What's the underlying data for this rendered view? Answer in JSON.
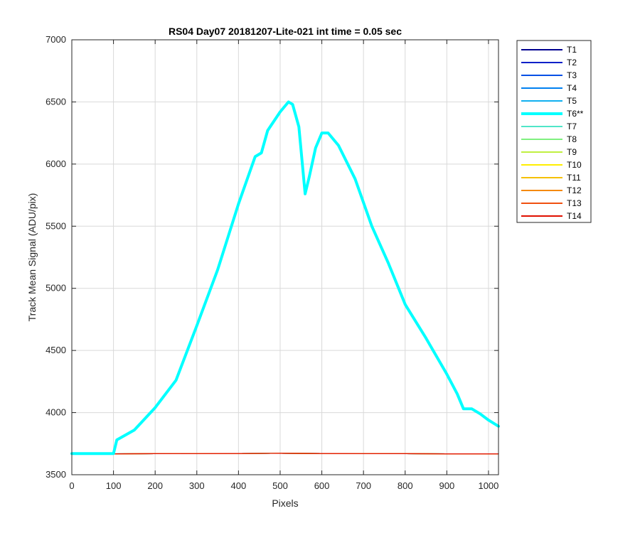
{
  "chart_data": {
    "type": "line",
    "title": "RS04 Day07 20181207-Lite-021 int time = 0.05 sec",
    "xlabel": "Pixels",
    "ylabel": "Track Mean Signal (ADU/pix)",
    "xlim": [
      0,
      1024
    ],
    "ylim": [
      3500,
      7000
    ],
    "xticks": [
      0,
      100,
      200,
      300,
      400,
      500,
      600,
      700,
      800,
      900,
      1000
    ],
    "yticks": [
      3500,
      4000,
      4500,
      5000,
      5500,
      6000,
      6500,
      7000
    ],
    "grid": true,
    "legend_position": "outside-top-right",
    "highlighted_series": "T6**",
    "baseline_series": {
      "names": [
        "T1",
        "T2",
        "T3",
        "T4",
        "T5",
        "T7",
        "T8",
        "T9",
        "T10",
        "T11",
        "T12",
        "T13",
        "T14"
      ],
      "x": [
        0,
        100,
        200,
        300,
        400,
        500,
        600,
        700,
        800,
        900,
        1024
      ],
      "values": [
        3668,
        3668,
        3669,
        3670,
        3671,
        3672,
        3671,
        3670,
        3669,
        3668,
        3668
      ]
    },
    "series": [
      {
        "name": "T1",
        "color": "#00008f",
        "x": [
          0,
          1024
        ],
        "values": [
          3668,
          3668
        ]
      },
      {
        "name": "T2",
        "color": "#0020c8",
        "x": [
          0,
          1024
        ],
        "values": [
          3668,
          3668
        ]
      },
      {
        "name": "T3",
        "color": "#0050e6",
        "x": [
          0,
          1024
        ],
        "values": [
          3668,
          3668
        ]
      },
      {
        "name": "T4",
        "color": "#0080f0",
        "x": [
          0,
          1024
        ],
        "values": [
          3668,
          3668
        ]
      },
      {
        "name": "T5",
        "color": "#10b0f0",
        "x": [
          0,
          1024
        ],
        "values": [
          3668,
          3668
        ]
      },
      {
        "name": "T6**",
        "color": "#00ffff",
        "x": [
          0,
          100,
          108,
          150,
          200,
          250,
          300,
          350,
          400,
          440,
          455,
          470,
          500,
          520,
          530,
          545,
          560,
          570,
          585,
          600,
          615,
          640,
          680,
          720,
          760,
          800,
          850,
          900,
          925,
          940,
          960,
          980,
          1000,
          1024
        ],
        "values": [
          3670,
          3670,
          3780,
          3860,
          4040,
          4260,
          4700,
          5150,
          5680,
          6060,
          6090,
          6270,
          6420,
          6500,
          6480,
          6300,
          5760,
          5900,
          6130,
          6250,
          6250,
          6150,
          5880,
          5500,
          5200,
          4870,
          4600,
          4310,
          4150,
          4030,
          4030,
          3990,
          3940,
          3890
        ]
      },
      {
        "name": "T7",
        "color": "#50e6c8",
        "x": [
          0,
          1024
        ],
        "values": [
          3668,
          3668
        ]
      },
      {
        "name": "T8",
        "color": "#80f080",
        "x": [
          0,
          1024
        ],
        "values": [
          3668,
          3668
        ]
      },
      {
        "name": "T9",
        "color": "#c0f040",
        "x": [
          0,
          1024
        ],
        "values": [
          3668,
          3668
        ]
      },
      {
        "name": "T10",
        "color": "#ffee00",
        "x": [
          0,
          1024
        ],
        "values": [
          3668,
          3668
        ]
      },
      {
        "name": "T11",
        "color": "#f5c000",
        "x": [
          0,
          1024
        ],
        "values": [
          3668,
          3668
        ]
      },
      {
        "name": "T12",
        "color": "#f58a10",
        "x": [
          0,
          1024
        ],
        "values": [
          3668,
          3668
        ]
      },
      {
        "name": "T13",
        "color": "#f05010",
        "x": [
          0,
          1024
        ],
        "values": [
          3668,
          3668
        ]
      },
      {
        "name": "T14",
        "color": "#e01000",
        "x": [
          0,
          1024
        ],
        "values": [
          3668,
          3668
        ]
      }
    ]
  }
}
